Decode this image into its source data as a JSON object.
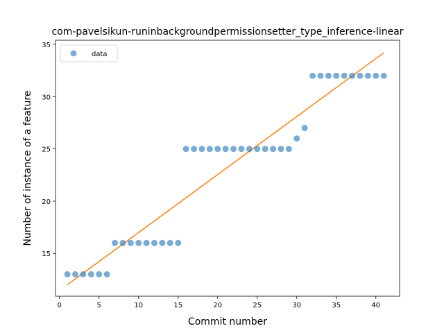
{
  "chart_data": {
    "type": "scatter",
    "title": "com-pavelsikun-runinbackgroundpermissionsetter_type_inference-linear",
    "xlabel": "Commit number",
    "ylabel": "Number of instance of a feature",
    "xlim": [
      -0.5,
      43
    ],
    "ylim": [
      10.9,
      35.4
    ],
    "xticks": [
      0,
      5,
      10,
      15,
      20,
      25,
      30,
      35,
      40
    ],
    "yticks": [
      15,
      20,
      25,
      30,
      35
    ],
    "grid": false,
    "legend_position": "top-left",
    "series": [
      {
        "name": "data",
        "kind": "points",
        "color": "#1f77b4",
        "x": [
          1,
          2,
          3,
          4,
          5,
          6,
          7,
          8,
          9,
          10,
          11,
          12,
          13,
          14,
          15,
          16,
          17,
          18,
          19,
          20,
          21,
          22,
          23,
          24,
          25,
          26,
          27,
          28,
          29,
          30,
          31,
          32,
          33,
          34,
          35,
          36,
          37,
          38,
          39,
          40,
          41
        ],
        "y": [
          13,
          13,
          13,
          13,
          13,
          13,
          16,
          16,
          16,
          16,
          16,
          16,
          16,
          16,
          16,
          25,
          25,
          25,
          25,
          25,
          25,
          25,
          25,
          25,
          25,
          25,
          25,
          25,
          25,
          26,
          27,
          32,
          32,
          32,
          32,
          32,
          32,
          32,
          32,
          32,
          32
        ]
      },
      {
        "kind": "fit-line",
        "color": "#ff7f0e",
        "x": [
          1,
          41
        ],
        "y": [
          12.0,
          34.2
        ]
      }
    ]
  }
}
